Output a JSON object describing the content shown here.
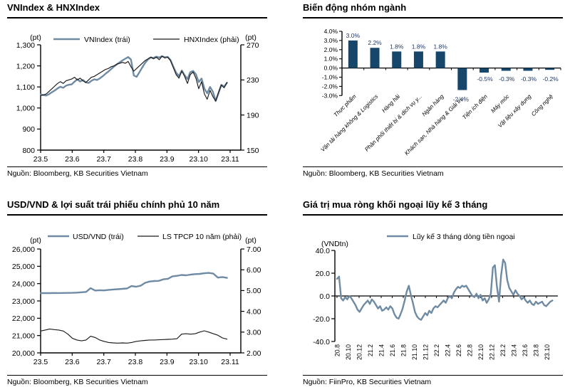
{
  "colors": {
    "line_blue": "#6f8ba3",
    "line_black": "#1a1a1a",
    "bar_navy": "#17466b",
    "label_navy": "#1f3864"
  },
  "panels": [
    {
      "id": "vnindex-hnxindex",
      "title": "VNIndex & HNXIndex",
      "source": "Nguồn: Bloomberg, KB Securities Vietnam",
      "left_unit": "(pt)",
      "right_unit": "(pt)",
      "chart_data": {
        "type": "line",
        "legend_position": "top",
        "x_ticks": [
          "23.5",
          "23.6",
          "23.7",
          "23.8",
          "23.9",
          "23.10",
          "23.11"
        ],
        "x_span_months": 5.9,
        "left_axis": {
          "unit": "(pt)",
          "min": 800,
          "max": 1300,
          "ticks": [
            "1,300",
            "1,200",
            "1,100",
            "1,000",
            "900",
            "800"
          ]
        },
        "right_axis": {
          "unit": "(pt)",
          "min": 150,
          "max": 270,
          "ticks": [
            "270",
            "230",
            "190",
            "150"
          ]
        },
        "series": [
          {
            "name": "VNIndex (trái)",
            "axis": "left",
            "color": "#6f8ba3",
            "thick": true,
            "values": [
              1065,
              1061,
              1059,
              1066,
              1075,
              1083,
              1093,
              1101,
              1096,
              1106,
              1110,
              1112,
              1125,
              1136,
              1126,
              1133,
              1122,
              1119,
              1129,
              1136,
              1133,
              1141,
              1151,
              1163,
              1173,
              1185,
              1197,
              1207,
              1217,
              1226,
              1234,
              1242,
              1230,
              1155,
              1148,
              1170,
              1193,
              1214,
              1230,
              1240,
              1238,
              1244,
              1240,
              1246,
              1241,
              1243,
              1228,
              1196,
              1168,
              1152,
              1178,
              1156,
              1137,
              1170,
              1176,
              1160,
              1123,
              1140,
              1092,
              1070,
              1100,
              1077,
              1033,
              1070,
              1110,
              1102,
              1120
            ]
          },
          {
            "name": "HNXIndex (phải)",
            "axis": "right",
            "color": "#1a1a1a",
            "thick": false,
            "values": [
              212,
              213,
              214,
              217,
              220,
              223,
              226,
              228,
              226,
              229,
              230,
              231,
              233,
              230,
              232,
              229,
              227,
              230,
              233,
              234,
              236,
              238,
              240,
              242,
              243,
              245,
              246,
              248,
              249,
              250,
              249,
              251,
              245,
              240,
              243,
              246,
              249,
              252,
              254,
              256,
              254,
              256,
              253,
              257,
              255,
              256,
              252,
              244,
              236,
              232,
              240,
              234,
              226,
              236,
              239,
              232,
              220,
              228,
              214,
              208,
              218,
              211,
              206,
              216,
              224,
              221,
              227
            ]
          }
        ]
      }
    },
    {
      "id": "sector-change",
      "title": "Biến động nhóm ngành",
      "source": "Nguồn: Bloomberg, KB Securities Vietnam",
      "chart_data": {
        "type": "bar",
        "y_ticks": [
          "4.0%",
          "3.0%",
          "2.0%",
          "1.0%",
          "0.0%",
          "-1.0%",
          "-2.0%",
          "-3.0%"
        ],
        "ylim": [
          -3,
          4
        ],
        "bar_color": "#17466b",
        "categories": [
          "Thực phẩm",
          "Vận tải hàng không & Logistics",
          "Hàng hải",
          "Phân phối thiết bị & dịch vụ y...",
          "Ngân hàng",
          "Khách sạn, Nhà hàng & Giải trí...",
          "Tiện ích điện",
          "Máy móc",
          "Vật liệu xây dựng",
          "Công nghệ"
        ],
        "values": [
          3.0,
          2.2,
          1.8,
          1.8,
          1.8,
          -2.4,
          -0.5,
          -0.3,
          -0.3,
          -0.2
        ],
        "value_labels": [
          "3.0%",
          "2.2%",
          "1.8%",
          "1.8%",
          "1.8%",
          "-2.4%",
          "-0.5%",
          "-0.3%",
          "-0.3%",
          "-0.2%"
        ]
      }
    },
    {
      "id": "usdvnd-bond",
      "title": "USD/VND & lợi suất trái phiếu chính phủ 10 năm",
      "source": "Nguồn: Bloomberg, KB Securities Vietnam",
      "left_unit": "(pt)",
      "right_unit": "(pt)",
      "chart_data": {
        "type": "line",
        "legend_position": "top",
        "x_ticks": [
          "23.5",
          "23.6",
          "23.7",
          "23.8",
          "23.9",
          "23.10",
          "23.11"
        ],
        "x_span_months": 5.9,
        "left_axis": {
          "unit": "(pt)",
          "min": 20000,
          "max": 26000,
          "ticks": [
            "26,000",
            "25,000",
            "24,000",
            "23,000",
            "22,000",
            "21,000",
            "20,000"
          ]
        },
        "right_axis": {
          "unit": "(pt)",
          "min": 2.0,
          "max": 7.0,
          "ticks": [
            "7.00",
            "6.00",
            "5.00",
            "4.00",
            "3.00",
            "2.00"
          ]
        },
        "series": [
          {
            "name": "USD/VND (trái)",
            "axis": "left",
            "color": "#6f8ba3",
            "thick": true,
            "values": [
              23450,
              23455,
              23450,
              23460,
              23455,
              23460,
              23465,
              23470,
              23480,
              23500,
              23520,
              23740,
              23600,
              23620,
              23610,
              23640,
              23660,
              23680,
              23700,
              23720,
              23860,
              23820,
              23880,
              24050,
              24120,
              24150,
              24160,
              24250,
              24280,
              24420,
              24450,
              24500,
              24480,
              24520,
              24550,
              24560,
              24600,
              24620,
              24580,
              24350,
              24380,
              24330
            ]
          },
          {
            "name": "LS TPCP 10 năm (phải)",
            "axis": "right",
            "color": "#1a1a1a",
            "thick": false,
            "values": [
              3.05,
              3.1,
              3.15,
              3.12,
              3.1,
              3.05,
              2.9,
              2.7,
              2.62,
              2.58,
              2.62,
              2.8,
              2.74,
              2.62,
              2.55,
              2.5,
              2.48,
              2.47,
              2.48,
              2.47,
              2.5,
              2.55,
              2.58,
              2.6,
              2.62,
              2.62,
              2.63,
              2.64,
              2.65,
              2.66,
              2.68,
              2.9,
              2.92,
              2.9,
              2.92,
              3.0,
              3.06,
              3.0,
              2.92,
              2.85,
              2.72,
              2.66
            ]
          }
        ]
      }
    },
    {
      "id": "foreign-flow",
      "title": "Giá trị mua ròng khối ngoại lũy kế 3 tháng",
      "source": "Nguồn: FiinPro, KB Securities Vietnam",
      "unit": "(VNDtn)",
      "chart_data": {
        "type": "line",
        "legend_position": "top",
        "x_ticks": [
          "20.8",
          "20.10",
          "20.12",
          "21.2",
          "21.4",
          "21.6",
          "21.8",
          "21.10",
          "21.12",
          "22.2",
          "22.4",
          "22.6",
          "22.8",
          "22.10",
          "22.12",
          "23.2",
          "23.4",
          "23.6",
          "23.8",
          "23.10"
        ],
        "y_ticks": [
          "40.0",
          "20.0",
          "0.0",
          "-20.0",
          "-40.0"
        ],
        "ylim": [
          -40,
          40
        ],
        "series": [
          {
            "name": "Lũy kế 3 tháng dòng tiền ngoại",
            "color": "#6f8ba3",
            "thick": true,
            "values": [
              15,
              17,
              -2,
              -4,
              -1,
              -3,
              0,
              -2,
              -5,
              -8,
              -12,
              -14,
              -11,
              -8,
              -6,
              -4,
              -7,
              -3,
              -5,
              -8,
              -11,
              -9,
              -13,
              -12,
              -10,
              -12,
              -9,
              -11,
              -16,
              -19,
              -20,
              -16,
              -11,
              -4,
              4,
              9,
              1,
              -6,
              -14,
              -18,
              -20,
              -21,
              -18,
              -15,
              -17,
              -13,
              -15,
              -11,
              -9,
              -10,
              -8,
              -6,
              -4,
              -6,
              -2,
              0,
              -2,
              3,
              6,
              8,
              7,
              9,
              8,
              9,
              6,
              3,
              0,
              -1,
              2,
              -2,
              1,
              -4,
              -2,
              -6,
              -3,
              2,
              25,
              27,
              8,
              -5,
              18,
              32,
              29,
              14,
              7,
              4,
              1,
              5,
              2,
              0,
              -3,
              -1,
              -4,
              -6,
              -4,
              -7,
              -8,
              -5,
              -7,
              -6,
              -5,
              -8,
              -9,
              -7,
              -5,
              -4
            ]
          }
        ]
      }
    }
  ]
}
